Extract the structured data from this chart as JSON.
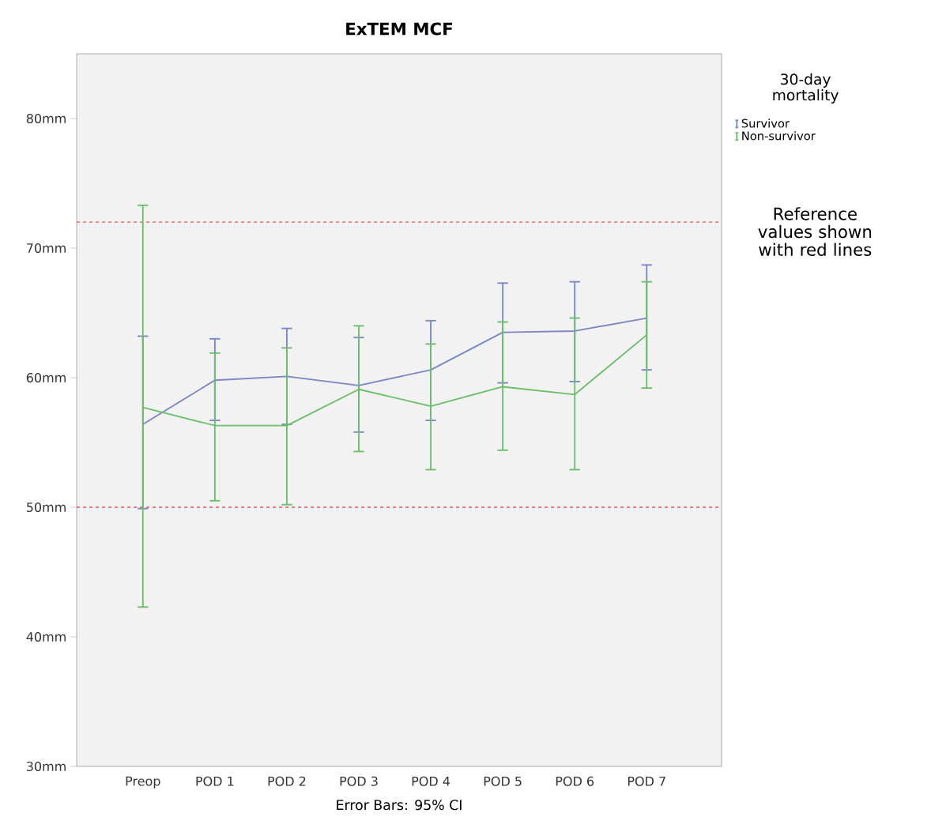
{
  "chart_data": {
    "type": "line",
    "title": "ExTEM MCF",
    "xlabel": "Error Bars: 95% CI",
    "legend_title": "30-day mortality",
    "categories": [
      "Preop",
      "POD 1",
      "POD 2",
      "POD 3",
      "POD 4",
      "POD 5",
      "POD 6",
      "POD 7"
    ],
    "series": [
      {
        "name": "Survivor",
        "color": "#7b86c4",
        "values": [
          56.4,
          59.8,
          60.1,
          59.4,
          60.6,
          63.5,
          63.6,
          64.6
        ],
        "errors": [
          [
            49.9,
            63.2
          ],
          [
            56.7,
            63.0
          ],
          [
            56.4,
            63.8
          ],
          [
            55.8,
            63.1
          ],
          [
            56.7,
            64.4
          ],
          [
            59.6,
            67.3
          ],
          [
            59.7,
            67.4
          ],
          [
            60.6,
            68.7
          ]
        ]
      },
      {
        "name": "Non-survivor",
        "color": "#6abf69",
        "values": [
          57.7,
          56.3,
          56.3,
          59.1,
          57.8,
          59.3,
          58.7,
          63.3
        ],
        "errors": [
          [
            42.3,
            73.3
          ],
          [
            50.5,
            61.9
          ],
          [
            50.2,
            62.3
          ],
          [
            54.3,
            64.0
          ],
          [
            52.9,
            62.6
          ],
          [
            54.4,
            64.3
          ],
          [
            52.9,
            64.6
          ],
          [
            59.2,
            67.4
          ]
        ]
      }
    ],
    "ylim": [
      30,
      85
    ],
    "yticks": [
      {
        "value": 30,
        "label": "30mm"
      },
      {
        "value": 40,
        "label": "40mm"
      },
      {
        "value": 50,
        "label": "50mm"
      },
      {
        "value": 60,
        "label": "60mm"
      },
      {
        "value": 70,
        "label": "70mm"
      },
      {
        "value": 80,
        "label": "80mm"
      }
    ],
    "ref_lines": [
      {
        "axis": "y",
        "value": 72,
        "color": "#e05555",
        "line_style": "dashed"
      },
      {
        "axis": "y",
        "value": 50,
        "color": "#e05555",
        "line_style": "dashed"
      }
    ],
    "annotations": [
      "Reference values shown with red lines"
    ],
    "legend": "right",
    "grid": false,
    "marker": "none",
    "line_style": "solid"
  }
}
